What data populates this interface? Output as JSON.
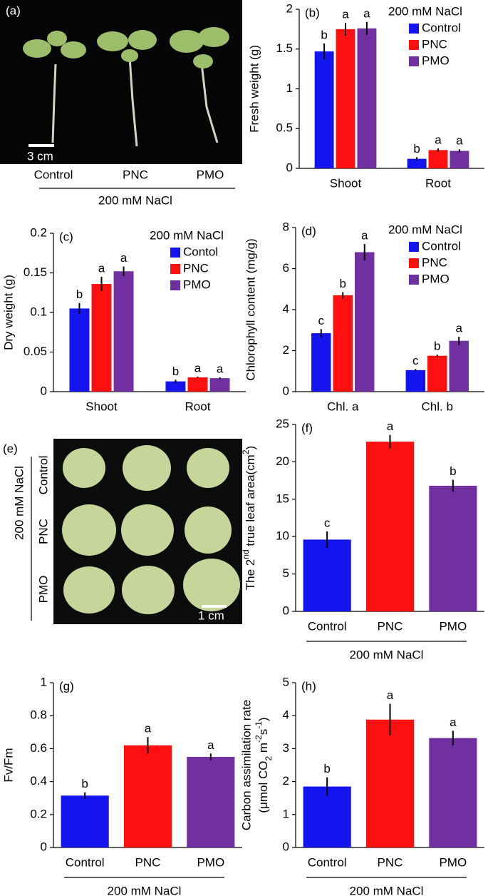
{
  "image_panels": [
    {
      "label": "(a)",
      "scale_bar": "3 cm",
      "categories": [
        "Control",
        "PNC",
        "PMO"
      ],
      "group_label": "200 mM NaCl"
    },
    {
      "label": "(e)",
      "scale_bar": "1 cm",
      "rows": [
        "Control",
        "PNC",
        "PMO"
      ],
      "group_label": "200 mM NaCl"
    }
  ],
  "chart_data": [
    {
      "type": "bar",
      "label": "(b)",
      "y_label": [
        "Fresh weight (g)"
      ],
      "categories": [
        "Shoot",
        "Root"
      ],
      "legend_title": "200 mM NaCl",
      "series": [
        {
          "name": "Control",
          "color": "#1414ee",
          "values": [
            1.47,
            0.12
          ],
          "errors": [
            0.1,
            0.02
          ],
          "letters": [
            "b",
            "b"
          ]
        },
        {
          "name": "PNC",
          "color": "#ff1010",
          "values": [
            1.75,
            0.23
          ],
          "errors": [
            0.08,
            0.02
          ],
          "letters": [
            "a",
            "a"
          ]
        },
        {
          "name": "PMO",
          "color": "#7030a0",
          "values": [
            1.76,
            0.22
          ],
          "errors": [
            0.08,
            0.02
          ],
          "letters": [
            "a",
            "a"
          ]
        }
      ],
      "ylim": [
        0,
        2
      ],
      "yticks": [
        0,
        0.5,
        1,
        1.5,
        2
      ]
    },
    {
      "type": "bar",
      "label": "(c)",
      "y_label": [
        "Dry weight (g)"
      ],
      "categories": [
        "Shoot",
        "Root"
      ],
      "legend_title": "200 mM NaCl",
      "series": [
        {
          "name": "Contol",
          "color": "#1414ee",
          "values": [
            0.105,
            0.013
          ],
          "errors": [
            0.007,
            0.002
          ],
          "letters": [
            "b",
            "b"
          ]
        },
        {
          "name": "PNC",
          "color": "#ff1010",
          "values": [
            0.136,
            0.018
          ],
          "errors": [
            0.009,
            0.001
          ],
          "letters": [
            "a",
            "a"
          ]
        },
        {
          "name": "PMO",
          "color": "#7030a0",
          "values": [
            0.152,
            0.017
          ],
          "errors": [
            0.006,
            0.001
          ],
          "letters": [
            "a",
            "a"
          ]
        }
      ],
      "ylim": [
        0,
        0.2
      ],
      "yticks": [
        0,
        0.05,
        0.1,
        0.15,
        0.2
      ]
    },
    {
      "type": "bar",
      "label": "(d)",
      "y_label": [
        "Chlorophyll content (mg/g)"
      ],
      "categories": [
        "Chl. a",
        "Chl. b"
      ],
      "legend_title": "200 mM NaCl",
      "series": [
        {
          "name": "Control",
          "color": "#1414ee",
          "values": [
            2.85,
            1.05
          ],
          "errors": [
            0.2,
            0.05
          ],
          "letters": [
            "c",
            "c"
          ]
        },
        {
          "name": "PNC",
          "color": "#ff1010",
          "values": [
            4.7,
            1.75
          ],
          "errors": [
            0.15,
            0.05
          ],
          "letters": [
            "b",
            "b"
          ]
        },
        {
          "name": "PMO",
          "color": "#7030a0",
          "values": [
            6.8,
            2.48
          ],
          "errors": [
            0.4,
            0.2
          ],
          "letters": [
            "a",
            "a"
          ]
        }
      ],
      "ylim": [
        0,
        8
      ],
      "yticks": [
        0,
        2,
        4,
        6,
        8
      ]
    },
    {
      "type": "bar",
      "label": "(f)",
      "y_label": [
        [
          {
            "text": "The 2"
          },
          {
            "text": "nd",
            "shift": "super"
          },
          {
            "text": " true leaf area(cm"
          },
          {
            "text": "2",
            "shift": "super"
          },
          {
            "text": ")"
          }
        ]
      ],
      "categories": [
        "Control",
        "PNC",
        "PMO"
      ],
      "group_label": "200 mM NaCl",
      "values": [
        9.6,
        22.7,
        16.8
      ],
      "errors": [
        1.1,
        0.9,
        0.8
      ],
      "letters": [
        "c",
        "a",
        "b"
      ],
      "colors": [
        "#1414ee",
        "#ff1010",
        "#7030a0"
      ],
      "ylim": [
        0,
        25
      ],
      "yticks": [
        0,
        5,
        10,
        15,
        20,
        25
      ]
    },
    {
      "type": "bar",
      "label": "(g)",
      "y_label": [
        "Fv/Fm"
      ],
      "categories": [
        "Control",
        "PNC",
        "PMO"
      ],
      "group_label": "200 mM NaCl",
      "values": [
        0.315,
        0.62,
        0.55
      ],
      "errors": [
        0.02,
        0.05,
        0.02
      ],
      "letters": [
        "b",
        "a",
        "a"
      ],
      "colors": [
        "#1414ee",
        "#ff1010",
        "#7030a0"
      ],
      "ylim": [
        0,
        1
      ],
      "yticks": [
        0,
        0.2,
        0.4,
        0.6,
        0.8,
        1
      ]
    },
    {
      "type": "bar",
      "label": "(h)",
      "y_label": [
        "Carbon assimilation rate",
        [
          {
            "text": "(μmol CO"
          },
          {
            "text": "2",
            "shift": "sub"
          },
          {
            "text": " m"
          },
          {
            "text": "-2",
            "shift": "super"
          },
          {
            "text": "s"
          },
          {
            "text": "-1",
            "shift": "super"
          },
          {
            "text": ")"
          }
        ]
      ],
      "categories": [
        "Control",
        "PNC",
        "PMO"
      ],
      "group_label": "200 mM NaCl",
      "values": [
        1.85,
        3.88,
        3.32
      ],
      "errors": [
        0.28,
        0.48,
        0.22
      ],
      "letters": [
        "b",
        "a",
        "a"
      ],
      "colors": [
        "#1414ee",
        "#ff1010",
        "#7030a0"
      ],
      "ylim": [
        0,
        5
      ],
      "yticks": [
        0,
        1,
        2,
        3,
        4,
        5
      ]
    }
  ]
}
